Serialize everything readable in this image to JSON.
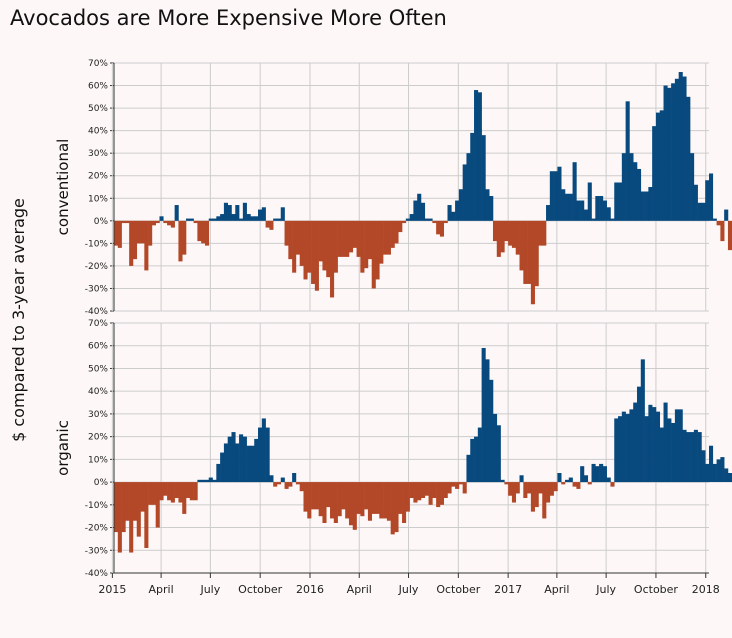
{
  "title": "Avocados are More Expensive More Often",
  "colors": {
    "positive": "#08497e",
    "negative": "#b34828",
    "grid": "#cccccc",
    "background": "#fdf8f7"
  },
  "chart_data": {
    "type": "bar",
    "title": "Avocados are More Expensive More Often",
    "ylabel": "$ compared to 3-year average",
    "xlabel": "",
    "ylim": [
      -40,
      70
    ],
    "ytick_values": [
      -40,
      -30,
      -20,
      -10,
      0,
      10,
      20,
      30,
      40,
      50,
      60,
      70
    ],
    "ytick_labels": [
      "-40%",
      "-30%",
      "-20%",
      "-10%",
      "0%",
      "10%",
      "20%",
      "30%",
      "40%",
      "50%",
      "60%",
      "70%"
    ],
    "xlim": [
      "2015-01-04",
      "2018-01-07"
    ],
    "xticks": [
      {
        "date": "2015-01-01",
        "label": "2015"
      },
      {
        "date": "2015-04-01",
        "label": "April"
      },
      {
        "date": "2015-07-01",
        "label": "July"
      },
      {
        "date": "2015-10-01",
        "label": "October"
      },
      {
        "date": "2016-01-01",
        "label": "2016"
      },
      {
        "date": "2016-04-01",
        "label": "April"
      },
      {
        "date": "2016-07-01",
        "label": "July"
      },
      {
        "date": "2016-10-01",
        "label": "October"
      },
      {
        "date": "2017-01-01",
        "label": "2017"
      },
      {
        "date": "2017-04-01",
        "label": "April"
      },
      {
        "date": "2017-07-01",
        "label": "July"
      },
      {
        "date": "2017-10-01",
        "label": "October"
      },
      {
        "date": "2018-01-01",
        "label": "2018"
      }
    ],
    "start_week": "2015-01-04",
    "grid": true,
    "panels": [
      {
        "name": "conventional",
        "values": [
          -11,
          -12,
          -1,
          -1,
          -20,
          -17,
          -10,
          -10,
          -22,
          -11,
          -2,
          -1,
          2,
          -1,
          -2,
          -3,
          7,
          -18,
          -15,
          1,
          1,
          -1,
          -9,
          -10,
          -11,
          1,
          1,
          2,
          3,
          8,
          7,
          3,
          7,
          1,
          8,
          3,
          2,
          2,
          5,
          6,
          -3,
          -4,
          1,
          1,
          6,
          -11,
          -17,
          -23,
          -15,
          -20,
          -26,
          -23,
          -28,
          -31,
          -18,
          -22,
          -25,
          -34,
          -23,
          -16,
          -16,
          -16,
          -14,
          -12,
          -16,
          -23,
          -21,
          -17,
          -30,
          -26,
          -19,
          -15,
          -15,
          -12,
          -10,
          -5,
          -1,
          1,
          3,
          9,
          12,
          8,
          1,
          1,
          -1,
          -6,
          -7,
          -1,
          7,
          4,
          9,
          14,
          25,
          30,
          39,
          58,
          57,
          38,
          14,
          11,
          -9,
          -16,
          -14,
          -9,
          -11,
          -12,
          -15,
          -22,
          -28,
          -28,
          -37,
          -29,
          -11,
          -11,
          7,
          22,
          22,
          24,
          14,
          12,
          12,
          26,
          9,
          9,
          5,
          17,
          1,
          11,
          11,
          9,
          6,
          1,
          17,
          17,
          30,
          53,
          30,
          26,
          23,
          13,
          13,
          15,
          42,
          48,
          49,
          60,
          59,
          61,
          63,
          66,
          64,
          55,
          30,
          16,
          8,
          8,
          18,
          21,
          1,
          -2,
          -9,
          5,
          -13
        ]
      },
      {
        "name": "organic",
        "values": [
          -22,
          -31,
          -22,
          -17,
          -31,
          -17,
          -24,
          -13,
          -29,
          -10,
          -10,
          -20,
          -8,
          -6,
          -8,
          -9,
          -7,
          -9,
          -14,
          -7,
          -8,
          -8,
          1,
          1,
          1,
          2,
          1,
          8,
          13,
          17,
          20,
          22,
          17,
          21,
          20,
          16,
          16,
          19,
          24,
          28,
          24,
          3,
          -2,
          -1,
          2,
          -3,
          -2,
          4,
          -1,
          -4,
          -13,
          -16,
          -12,
          -12,
          -15,
          -18,
          -11,
          -16,
          -18,
          -15,
          -12,
          -16,
          -19,
          -21,
          -14,
          -15,
          -12,
          -17,
          -14,
          -14,
          -16,
          -16,
          -17,
          -23,
          -22,
          -14,
          -18,
          -13,
          -7,
          -9,
          -8,
          -7,
          -6,
          -10,
          -7,
          -11,
          -10,
          -7,
          -5,
          -2,
          -3,
          -1,
          -5,
          12,
          19,
          20,
          24,
          59,
          54,
          45,
          30,
          25,
          1,
          -1,
          -6,
          -9,
          -5,
          3,
          -7,
          -5,
          -13,
          -11,
          -5,
          -16,
          -9,
          -6,
          -4,
          4,
          -1,
          1,
          2,
          -2,
          -3,
          7,
          3,
          -1,
          8,
          7,
          8,
          7,
          2,
          -2,
          28,
          29,
          31,
          30,
          32,
          35,
          42,
          54,
          29,
          34,
          33,
          31,
          24,
          35,
          28,
          26,
          32,
          32,
          23,
          22,
          22,
          23,
          22,
          14,
          8,
          16,
          8,
          10,
          11,
          6,
          4
        ]
      }
    ]
  }
}
